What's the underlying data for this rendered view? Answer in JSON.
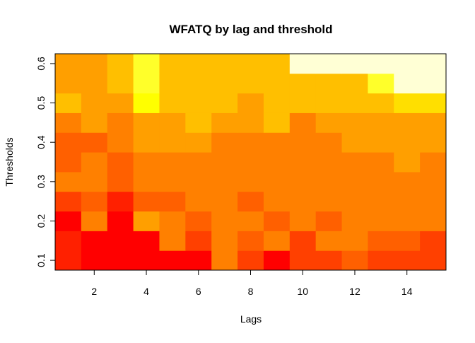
{
  "chart_data": {
    "type": "heatmap",
    "title": "WFATQ by lag and threshold",
    "xlabel": "Lags",
    "ylabel": "Thresholds",
    "x": [
      1,
      2,
      3,
      4,
      5,
      6,
      7,
      8,
      9,
      10,
      11,
      12,
      13,
      14,
      15
    ],
    "y": [
      0.1,
      0.15,
      0.2,
      0.25,
      0.3,
      0.35,
      0.4,
      0.45,
      0.5,
      0.55,
      0.6
    ],
    "x_ticks": [
      2,
      4,
      6,
      8,
      10,
      12,
      14
    ],
    "y_ticks": [
      0.1,
      0.2,
      0.3,
      0.4,
      0.5,
      0.6
    ],
    "xlim": [
      0.5,
      15.5
    ],
    "ylim": [
      0.075,
      0.625
    ],
    "palette": [
      "#FF0000",
      "#FF2000",
      "#FF4000",
      "#FF6000",
      "#FF8000",
      "#FF9F00",
      "#FFBF00",
      "#FFDF00",
      "#FFFF00",
      "#FFFF2A",
      "#FFFF80",
      "#FFFFD5"
    ],
    "z_levels_by_row_from_0.1": [
      [
        1,
        0,
        0,
        0,
        0,
        0,
        4,
        2,
        0,
        2,
        2,
        3,
        2,
        2,
        2
      ],
      [
        1,
        0,
        0,
        0,
        4,
        2,
        4,
        3,
        4,
        2,
        4,
        4,
        3,
        3,
        2
      ],
      [
        0,
        4,
        0,
        5,
        4,
        3,
        4,
        4,
        3,
        4,
        3,
        4,
        4,
        4,
        4
      ],
      [
        2,
        3,
        1,
        3,
        3,
        4,
        4,
        3,
        4,
        4,
        4,
        4,
        4,
        4,
        4
      ],
      [
        4,
        4,
        3,
        4,
        4,
        4,
        4,
        4,
        4,
        4,
        4,
        4,
        4,
        4,
        4
      ],
      [
        3,
        4,
        3,
        4,
        4,
        4,
        4,
        4,
        4,
        4,
        4,
        4,
        4,
        5,
        4
      ],
      [
        3,
        3,
        4,
        5,
        5,
        5,
        4,
        4,
        4,
        4,
        4,
        5,
        5,
        5,
        5
      ],
      [
        4,
        5,
        4,
        5,
        5,
        6,
        5,
        5,
        6,
        4,
        5,
        5,
        5,
        5,
        5
      ],
      [
        6,
        5,
        5,
        8,
        6,
        6,
        6,
        5,
        6,
        6,
        6,
        6,
        6,
        7,
        7
      ],
      [
        5,
        5,
        6,
        9,
        6,
        6,
        6,
        6,
        6,
        6,
        6,
        6,
        9,
        11,
        11
      ],
      [
        5,
        5,
        6,
        9,
        6,
        6,
        6,
        6,
        6,
        11,
        11,
        11,
        11,
        11,
        11
      ]
    ],
    "grid": false,
    "legend": "none"
  }
}
